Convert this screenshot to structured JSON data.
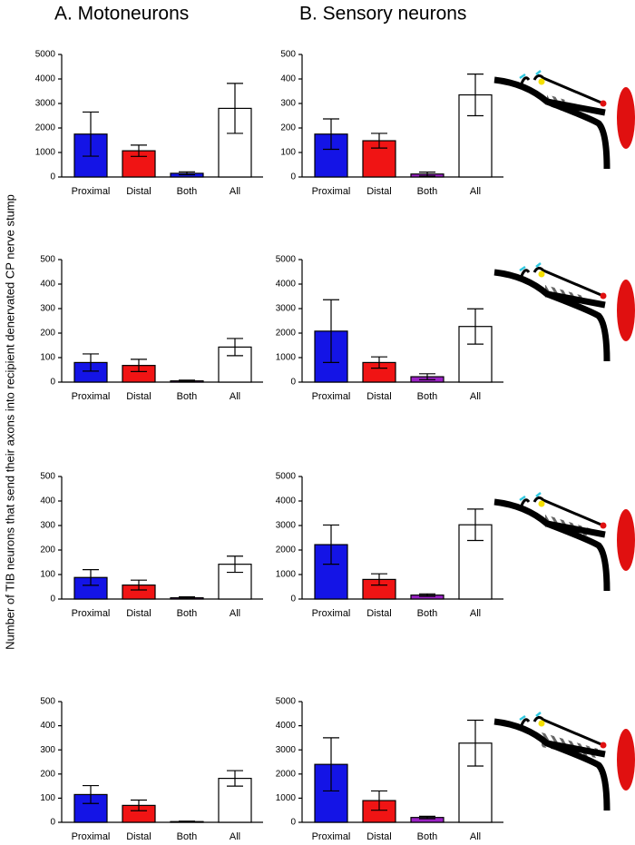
{
  "header": {
    "left": "A. Motoneurons",
    "right": "B. Sensory neurons"
  },
  "ylabel": "Number of TIB neurons that send their axons into recipient denervated CP nerve stump",
  "chart_data": [
    {
      "type": "bar",
      "categories": [
        "Proximal",
        "Distal",
        "Both",
        "All"
      ],
      "values": [
        1750,
        1070,
        150,
        2800
      ],
      "errors": [
        900,
        230,
        60,
        1020
      ],
      "colors": [
        "#1414e6",
        "#f01414",
        "#1414e6",
        "#ffffff"
      ],
      "ylim": [
        0,
        5000
      ],
      "yticks": [
        0,
        1000,
        2000,
        3000,
        4000,
        5000
      ]
    },
    {
      "type": "bar",
      "categories": [
        "Proximal",
        "Distal",
        "Both",
        "All"
      ],
      "values": [
        175,
        148,
        12,
        335
      ],
      "errors": [
        62,
        30,
        8,
        85
      ],
      "colors": [
        "#1414e6",
        "#f01414",
        "#9a22c4",
        "#ffffff"
      ],
      "ylim": [
        0,
        500
      ],
      "yticks": [
        0,
        100,
        200,
        300,
        400,
        500
      ]
    },
    {
      "type": "bar",
      "categories": [
        "Proximal",
        "Distal",
        "Both",
        "All"
      ],
      "values": [
        80,
        68,
        5,
        143
      ],
      "errors": [
        35,
        25,
        3,
        35
      ],
      "colors": [
        "#1414e6",
        "#f01414",
        "#9a22c4",
        "#ffffff"
      ],
      "ylim": [
        0,
        500
      ],
      "yticks": [
        0,
        100,
        200,
        300,
        400,
        500
      ]
    },
    {
      "type": "bar",
      "categories": [
        "Proximal",
        "Distal",
        "Both",
        "All"
      ],
      "values": [
        2080,
        800,
        220,
        2270
      ],
      "errors": [
        1280,
        230,
        120,
        720
      ],
      "colors": [
        "#1414e6",
        "#f01414",
        "#9a22c4",
        "#ffffff"
      ],
      "ylim": [
        0,
        5000
      ],
      "yticks": [
        0,
        1000,
        2000,
        3000,
        4000,
        5000
      ]
    },
    {
      "type": "bar",
      "categories": [
        "Proximal",
        "Distal",
        "Both",
        "All"
      ],
      "values": [
        88,
        57,
        5,
        142
      ],
      "errors": [
        32,
        20,
        4,
        33
      ],
      "colors": [
        "#1414e6",
        "#f01414",
        "#9a22c4",
        "#ffffff"
      ],
      "ylim": [
        0,
        500
      ],
      "yticks": [
        0,
        100,
        200,
        300,
        400,
        500
      ]
    },
    {
      "type": "bar",
      "categories": [
        "Proximal",
        "Distal",
        "Both",
        "All"
      ],
      "values": [
        2220,
        800,
        160,
        3030
      ],
      "errors": [
        800,
        230,
        50,
        640
      ],
      "colors": [
        "#1414e6",
        "#f01414",
        "#9a22c4",
        "#ffffff"
      ],
      "ylim": [
        0,
        5000
      ],
      "yticks": [
        0,
        1000,
        2000,
        3000,
        4000,
        5000
      ]
    },
    {
      "type": "bar",
      "categories": [
        "Proximal",
        "Distal",
        "Both",
        "All"
      ],
      "values": [
        115,
        70,
        3,
        182
      ],
      "errors": [
        37,
        22,
        2,
        32
      ],
      "colors": [
        "#1414e6",
        "#f01414",
        "#9a22c4",
        "#ffffff"
      ],
      "ylim": [
        0,
        500
      ],
      "yticks": [
        0,
        100,
        200,
        300,
        400,
        500
      ]
    },
    {
      "type": "bar",
      "categories": [
        "Proximal",
        "Distal",
        "Both",
        "All"
      ],
      "values": [
        2400,
        900,
        200,
        3280
      ],
      "errors": [
        1100,
        400,
        50,
        950
      ],
      "colors": [
        "#1414e6",
        "#f01414",
        "#9a22c4",
        "#ffffff"
      ],
      "ylim": [
        0,
        5000
      ],
      "yticks": [
        0,
        1000,
        2000,
        3000,
        4000,
        5000
      ]
    }
  ]
}
